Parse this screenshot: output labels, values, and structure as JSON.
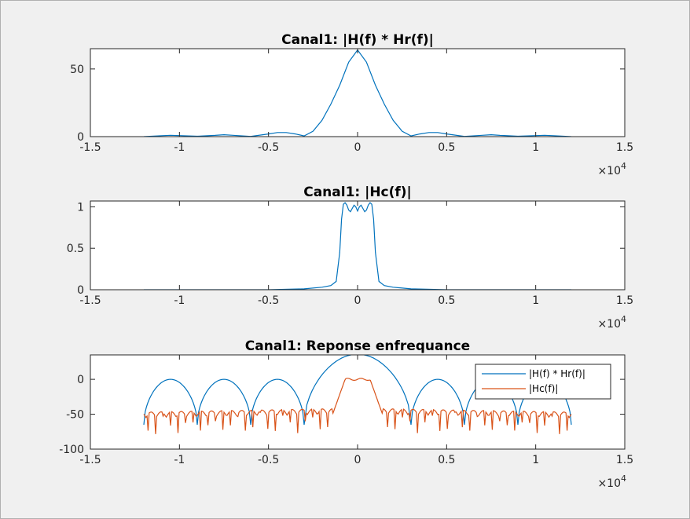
{
  "colors": {
    "figure_bg": "#f0f0f0",
    "axes_bg": "#ffffff",
    "axis": "#262626",
    "series1": "#0072bd",
    "series2": "#d95319"
  },
  "chart_data": [
    {
      "type": "line",
      "title": "Canal1: |H(f) * Hr(f)|",
      "xlim": [
        -15000,
        15000
      ],
      "ylim": [
        0,
        65
      ],
      "x_ticks": [
        -15000,
        -10000,
        -5000,
        0,
        5000,
        10000,
        15000
      ],
      "x_tick_labels": [
        "-1.5",
        "-1",
        "-0.5",
        "0",
        "0.5",
        "1",
        "1.5"
      ],
      "y_ticks": [
        0,
        50
      ],
      "y_tick_labels": [
        "0",
        "50"
      ],
      "x_multiplier": "×10",
      "x_multiplier_exp": "4",
      "grid": false,
      "series": [
        {
          "color": "#0072bd",
          "x": [
            -12000,
            -11000,
            -10500,
            -9000,
            -8000,
            -7500,
            -7000,
            -6000,
            -5000,
            -4500,
            -4000,
            -3500,
            -3000,
            -2500,
            -2000,
            -1500,
            -1000,
            -500,
            0,
            500,
            1000,
            1500,
            2000,
            2500,
            3000,
            3500,
            4000,
            4500,
            5000,
            6000,
            7000,
            7500,
            8000,
            9000,
            10500,
            11000,
            12000
          ],
          "y": [
            0,
            0.7,
            1,
            0.3,
            0.9,
            1.4,
            1,
            0.2,
            2,
            3,
            3,
            2,
            0.5,
            4,
            12,
            24,
            38,
            55,
            64,
            55,
            38,
            24,
            12,
            4,
            0.5,
            2,
            3,
            3,
            2,
            0.2,
            1,
            1.4,
            0.9,
            0.3,
            1,
            0.7,
            0
          ]
        }
      ]
    },
    {
      "type": "line",
      "title": "Canal1: |Hc(f)|",
      "xlim": [
        -15000,
        15000
      ],
      "ylim": [
        0,
        1.07
      ],
      "x_ticks": [
        -15000,
        -10000,
        -5000,
        0,
        5000,
        10000,
        15000
      ],
      "x_tick_labels": [
        "-1.5",
        "-1",
        "-0.5",
        "0",
        "0.5",
        "1",
        "1.5"
      ],
      "y_ticks": [
        0,
        0.5,
        1
      ],
      "y_tick_labels": [
        "0",
        "0.5",
        "1"
      ],
      "x_multiplier": "×10",
      "x_multiplier_exp": "4",
      "grid": false,
      "series": [
        {
          "color": "#0072bd",
          "x": [
            -12000,
            -5000,
            -3000,
            -2000,
            -1500,
            -1200,
            -1000,
            -900,
            -800,
            -700,
            -600,
            -500,
            -400,
            -300,
            -200,
            -100,
            0,
            100,
            200,
            300,
            400,
            500,
            600,
            700,
            800,
            900,
            1000,
            1200,
            1500,
            2000,
            3000,
            5000,
            12000
          ],
          "y": [
            0,
            0,
            0.01,
            0.03,
            0.05,
            0.1,
            0.45,
            0.85,
            1.03,
            1.05,
            1.02,
            0.96,
            0.94,
            0.98,
            1.02,
            1.0,
            0.95,
            1.0,
            1.02,
            0.98,
            0.94,
            0.96,
            1.02,
            1.05,
            1.03,
            0.85,
            0.45,
            0.1,
            0.05,
            0.03,
            0.01,
            0,
            0
          ]
        }
      ]
    },
    {
      "type": "line",
      "title": "Canal1: Reponse enfrequance",
      "xlim": [
        -15000,
        15000
      ],
      "ylim": [
        -100,
        35
      ],
      "x_ticks": [
        -15000,
        -10000,
        -5000,
        0,
        5000,
        10000,
        15000
      ],
      "x_tick_labels": [
        "-1.5",
        "-1",
        "-0.5",
        "0",
        "0.5",
        "1",
        "1.5"
      ],
      "y_ticks": [
        -100,
        -50,
        0
      ],
      "y_tick_labels": [
        "-100",
        "-50",
        "0"
      ],
      "x_multiplier": "×10",
      "x_multiplier_exp": "4",
      "grid": false,
      "legend": {
        "placement": "top-right",
        "entries": [
          "|H(f) * Hr(f)|",
          "|Hc(f)|"
        ]
      },
      "series": [
        {
          "name": "|H(f) * Hr(f)|",
          "color": "#0072bd",
          "lobe_edges": [
            -12000,
            -9000,
            -6000,
            -3000,
            3000,
            6000,
            9000,
            12000
          ],
          "side_lobe_peak": 0,
          "main_lobe_peak": 36,
          "null_depth": -65
        },
        {
          "name": "|Hc(f)|",
          "color": "#d95319",
          "passband": [
            -1000,
            1000
          ],
          "passband_level": 0,
          "stopband_range": [
            -90,
            -40
          ],
          "edges": [
            -12000,
            12000
          ]
        }
      ]
    }
  ]
}
